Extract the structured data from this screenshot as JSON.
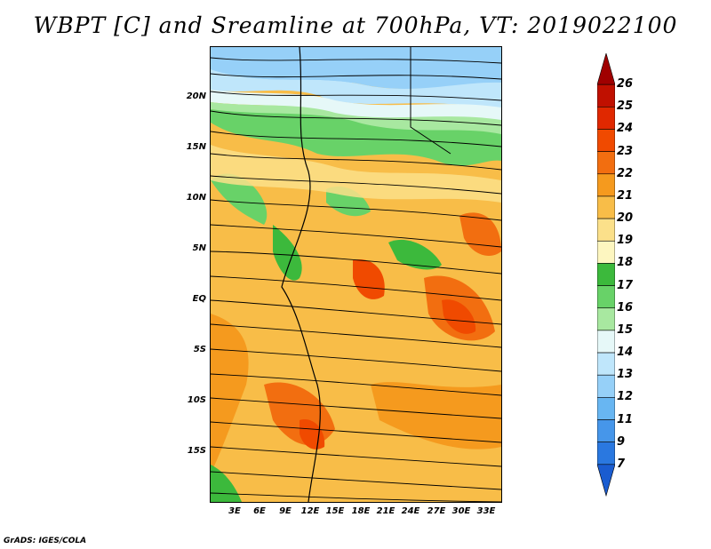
{
  "title": "WBPT [C] and Sreamline at 700hPa, VT: 2019022100",
  "footer": "GrADS: IGES/COLA",
  "lat_labels": [
    "20N",
    "15N",
    "10N",
    "5N",
    "EQ",
    "5S",
    "10S",
    "15S"
  ],
  "lon_labels": [
    "3E",
    "6E",
    "9E",
    "12E",
    "15E",
    "18E",
    "21E",
    "24E",
    "27E",
    "30E",
    "33E"
  ],
  "colorbar": {
    "labels": [
      "26",
      "25",
      "24",
      "23",
      "22",
      "21",
      "20",
      "19",
      "18",
      "17",
      "16",
      "15",
      "14",
      "13",
      "12",
      "11",
      "9",
      "7"
    ],
    "colors": [
      "#a00000",
      "#c01000",
      "#e02800",
      "#f04a00",
      "#f26e10",
      "#f59a1e",
      "#f8bd48",
      "#fbe08a",
      "#fdf6c0",
      "#3cb93c",
      "#68d268",
      "#a8e8a0",
      "#e6f8f8",
      "#bfe6fb",
      "#96d0f8",
      "#68b6f2",
      "#4696ea",
      "#2a78e0",
      "#1a5cd0"
    ]
  }
}
